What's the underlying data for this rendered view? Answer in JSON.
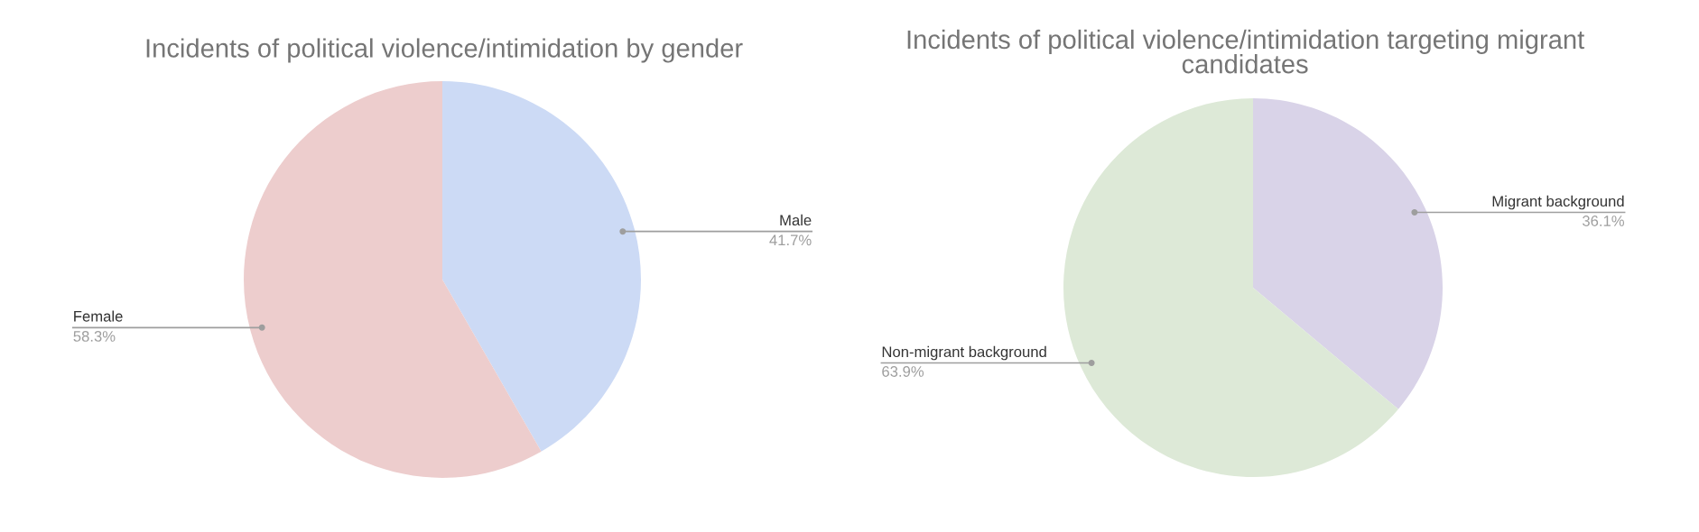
{
  "chart_data": [
    {
      "type": "pie",
      "title": "Incidents of political violence/intimidation by gender",
      "categories": [
        "Male",
        "Female"
      ],
      "values": [
        41.7,
        58.3
      ],
      "value_labels": [
        "41.7%",
        "58.3%"
      ],
      "colors": [
        "#ccdaf5",
        "#edcdcd"
      ]
    },
    {
      "type": "pie",
      "title": "Incidents of political violence/intimidation targeting migrant candidates",
      "categories": [
        "Migrant background",
        "Non-migrant background"
      ],
      "values": [
        36.1,
        63.9
      ],
      "value_labels": [
        "36.1%",
        "63.9%"
      ],
      "colors": [
        "#d9d3e8",
        "#dde9d7"
      ]
    }
  ]
}
